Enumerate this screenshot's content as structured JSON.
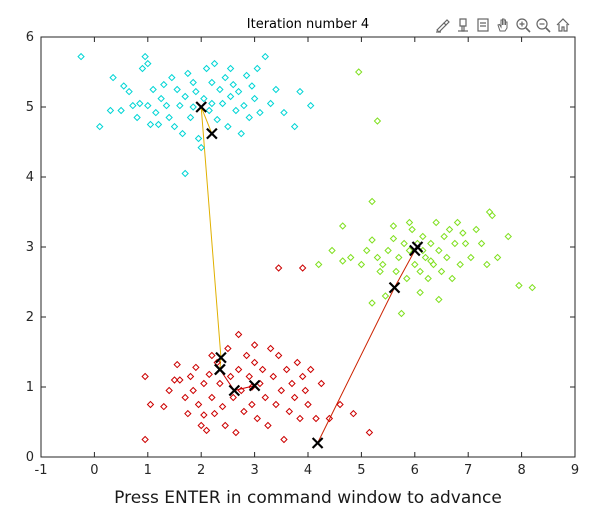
{
  "window": {},
  "toolbar": {
    "buttons": [
      {
        "name": "brush-icon"
      },
      {
        "name": "paint-icon"
      },
      {
        "name": "data-tips-icon"
      },
      {
        "name": "pan-hand-icon"
      },
      {
        "name": "zoom-in-icon"
      },
      {
        "name": "zoom-out-icon"
      },
      {
        "name": "home-icon"
      }
    ]
  },
  "chart_data": {
    "type": "scatter",
    "title": "Iteration number 4",
    "xlabel": "Press ENTER in command window to advance",
    "ylabel": "",
    "xlim": [
      -1,
      9
    ],
    "ylim": [
      0,
      6
    ],
    "xticks": [
      "-1",
      "0",
      "1",
      "2",
      "3",
      "4",
      "5",
      "6",
      "7",
      "8",
      "9"
    ],
    "yticks": [
      "0",
      "1",
      "2",
      "3",
      "4",
      "5",
      "6"
    ],
    "grid": false,
    "series": [
      {
        "color": "#00d5d5",
        "marker": "diamond-open",
        "points": [
          [
            -0.25,
            5.72
          ],
          [
            0.1,
            4.72
          ],
          [
            0.3,
            4.95
          ],
          [
            0.35,
            5.42
          ],
          [
            0.5,
            4.95
          ],
          [
            0.55,
            5.3
          ],
          [
            0.65,
            5.22
          ],
          [
            0.72,
            5.02
          ],
          [
            0.8,
            4.85
          ],
          [
            0.9,
            5.55
          ],
          [
            0.95,
            5.72
          ],
          [
            1.0,
            5.62
          ],
          [
            1.0,
            5.02
          ],
          [
            1.05,
            4.75
          ],
          [
            1.1,
            5.25
          ],
          [
            1.15,
            4.92
          ],
          [
            1.2,
            4.75
          ],
          [
            1.25,
            5.12
          ],
          [
            1.3,
            5.32
          ],
          [
            1.35,
            5.02
          ],
          [
            1.4,
            4.85
          ],
          [
            1.45,
            5.42
          ],
          [
            1.5,
            4.72
          ],
          [
            1.55,
            5.25
          ],
          [
            1.6,
            5.02
          ],
          [
            1.65,
            4.62
          ],
          [
            1.7,
            5.15
          ],
          [
            1.75,
            5.48
          ],
          [
            1.8,
            4.85
          ],
          [
            1.85,
            5.35
          ],
          [
            1.9,
            5.22
          ],
          [
            1.95,
            4.55
          ],
          [
            2.0,
            4.42
          ],
          [
            2.05,
            5.12
          ],
          [
            2.1,
            5.55
          ],
          [
            2.15,
            4.95
          ],
          [
            2.2,
            5.35
          ],
          [
            2.25,
            5.62
          ],
          [
            2.3,
            4.82
          ],
          [
            2.35,
            5.25
          ],
          [
            2.4,
            5.05
          ],
          [
            2.45,
            5.42
          ],
          [
            2.5,
            4.72
          ],
          [
            2.55,
            5.15
          ],
          [
            2.6,
            5.32
          ],
          [
            2.65,
            4.95
          ],
          [
            2.7,
            5.22
          ],
          [
            2.75,
            4.62
          ],
          [
            2.8,
            5.02
          ],
          [
            2.85,
            5.45
          ],
          [
            2.9,
            4.85
          ],
          [
            3.0,
            5.12
          ],
          [
            3.05,
            5.55
          ],
          [
            3.1,
            4.92
          ],
          [
            3.2,
            5.72
          ],
          [
            3.3,
            5.05
          ],
          [
            3.4,
            5.25
          ],
          [
            3.55,
            4.92
          ],
          [
            3.75,
            4.72
          ],
          [
            3.85,
            5.22
          ],
          [
            4.05,
            5.02
          ],
          [
            1.7,
            4.05
          ],
          [
            2.2,
            5.05
          ],
          [
            1.85,
            5.0
          ],
          [
            0.85,
            5.05
          ],
          [
            2.95,
            5.3
          ],
          [
            2.55,
            5.55
          ]
        ]
      },
      {
        "color": "#80e020",
        "marker": "diamond-open",
        "points": [
          [
            4.95,
            5.5
          ],
          [
            5.3,
            4.8
          ],
          [
            5.2,
            3.65
          ],
          [
            4.65,
            3.3
          ],
          [
            4.8,
            2.85
          ],
          [
            4.65,
            2.8
          ],
          [
            4.2,
            2.75
          ],
          [
            4.45,
            2.95
          ],
          [
            5.0,
            2.75
          ],
          [
            5.1,
            2.95
          ],
          [
            5.2,
            3.1
          ],
          [
            5.3,
            2.85
          ],
          [
            5.4,
            2.75
          ],
          [
            5.5,
            2.95
          ],
          [
            5.6,
            3.12
          ],
          [
            5.65,
            2.65
          ],
          [
            5.7,
            2.85
          ],
          [
            5.8,
            3.05
          ],
          [
            5.85,
            2.55
          ],
          [
            5.9,
            2.95
          ],
          [
            5.95,
            3.25
          ],
          [
            6.0,
            2.75
          ],
          [
            6.05,
            3.05
          ],
          [
            6.1,
            2.65
          ],
          [
            6.15,
            3.15
          ],
          [
            6.2,
            2.85
          ],
          [
            6.25,
            2.55
          ],
          [
            6.3,
            3.05
          ],
          [
            6.35,
            2.75
          ],
          [
            6.4,
            3.35
          ],
          [
            6.45,
            2.95
          ],
          [
            6.5,
            2.65
          ],
          [
            6.55,
            3.15
          ],
          [
            6.6,
            2.85
          ],
          [
            6.65,
            3.25
          ],
          [
            6.7,
            2.55
          ],
          [
            6.75,
            3.05
          ],
          [
            6.8,
            3.35
          ],
          [
            6.85,
            2.75
          ],
          [
            6.95,
            3.05
          ],
          [
            7.05,
            2.85
          ],
          [
            7.15,
            3.25
          ],
          [
            7.25,
            3.05
          ],
          [
            7.35,
            2.75
          ],
          [
            7.45,
            3.45
          ],
          [
            7.55,
            2.85
          ],
          [
            7.75,
            3.15
          ],
          [
            7.95,
            2.45
          ],
          [
            8.2,
            2.42
          ],
          [
            5.45,
            2.3
          ],
          [
            5.2,
            2.2
          ],
          [
            6.45,
            2.25
          ],
          [
            6.1,
            2.35
          ],
          [
            5.75,
            2.05
          ],
          [
            6.3,
            2.8
          ],
          [
            5.6,
            3.3
          ],
          [
            6.9,
            3.2
          ],
          [
            7.4,
            3.5
          ],
          [
            6.15,
            2.95
          ],
          [
            5.35,
            2.65
          ],
          [
            5.9,
            3.35
          ]
        ]
      },
      {
        "color": "#cc0000",
        "marker": "diamond-open",
        "points": [
          [
            0.95,
            0.25
          ],
          [
            0.95,
            1.15
          ],
          [
            1.05,
            0.75
          ],
          [
            1.4,
            0.95
          ],
          [
            1.5,
            1.1
          ],
          [
            1.55,
            1.32
          ],
          [
            1.6,
            1.1
          ],
          [
            1.7,
            0.85
          ],
          [
            1.75,
            0.62
          ],
          [
            1.8,
            1.15
          ],
          [
            1.85,
            0.95
          ],
          [
            1.9,
            1.28
          ],
          [
            1.95,
            0.75
          ],
          [
            2.0,
            0.45
          ],
          [
            2.05,
            1.05
          ],
          [
            2.1,
            0.38
          ],
          [
            2.15,
            1.18
          ],
          [
            2.2,
            0.85
          ],
          [
            2.25,
            0.62
          ],
          [
            2.3,
            1.35
          ],
          [
            2.35,
            1.05
          ],
          [
            2.4,
            0.72
          ],
          [
            2.45,
            0.45
          ],
          [
            2.5,
            1.55
          ],
          [
            2.55,
            1.15
          ],
          [
            2.6,
            0.85
          ],
          [
            2.65,
            0.35
          ],
          [
            2.7,
            1.25
          ],
          [
            2.75,
            0.95
          ],
          [
            2.8,
            0.65
          ],
          [
            2.85,
            1.45
          ],
          [
            2.9,
            1.15
          ],
          [
            2.95,
            0.75
          ],
          [
            3.0,
            1.35
          ],
          [
            3.05,
            0.55
          ],
          [
            3.1,
            1.05
          ],
          [
            3.15,
            1.25
          ],
          [
            3.2,
            0.85
          ],
          [
            3.25,
            0.45
          ],
          [
            3.3,
            1.55
          ],
          [
            3.35,
            1.15
          ],
          [
            3.4,
            0.75
          ],
          [
            3.45,
            1.45
          ],
          [
            3.5,
            0.95
          ],
          [
            3.55,
            0.25
          ],
          [
            3.6,
            1.25
          ],
          [
            3.65,
            0.65
          ],
          [
            3.7,
            1.05
          ],
          [
            3.75,
            0.85
          ],
          [
            3.8,
            1.35
          ],
          [
            3.85,
            0.55
          ],
          [
            3.9,
            1.15
          ],
          [
            3.95,
            0.95
          ],
          [
            4.0,
            0.75
          ],
          [
            4.05,
            1.25
          ],
          [
            4.15,
            0.55
          ],
          [
            4.25,
            1.05
          ],
          [
            4.4,
            0.55
          ],
          [
            4.6,
            0.75
          ],
          [
            4.85,
            0.62
          ],
          [
            5.15,
            0.35
          ],
          [
            3.45,
            2.7
          ],
          [
            3.9,
            2.7
          ],
          [
            2.7,
            1.75
          ],
          [
            3.0,
            1.6
          ],
          [
            2.2,
            1.45
          ],
          [
            1.3,
            0.72
          ],
          [
            2.95,
            1.0
          ],
          [
            2.05,
            0.6
          ]
        ]
      }
    ],
    "centroid_history": [
      {
        "color": "#e0b000",
        "points": [
          [
            2.2,
            4.62
          ],
          [
            2.0,
            5.0
          ],
          [
            2.37,
            1.42
          ],
          [
            2.35,
            1.25
          ]
        ]
      },
      {
        "color": "#cc2200",
        "points": [
          [
            4.18,
            0.2
          ],
          [
            5.62,
            2.42
          ],
          [
            6.0,
            2.95
          ],
          [
            6.05,
            3.0
          ]
        ]
      },
      {
        "color": "#cc0000",
        "points": [
          [
            2.35,
            1.25
          ],
          [
            2.62,
            0.95
          ],
          [
            3.0,
            1.02
          ]
        ]
      }
    ]
  }
}
